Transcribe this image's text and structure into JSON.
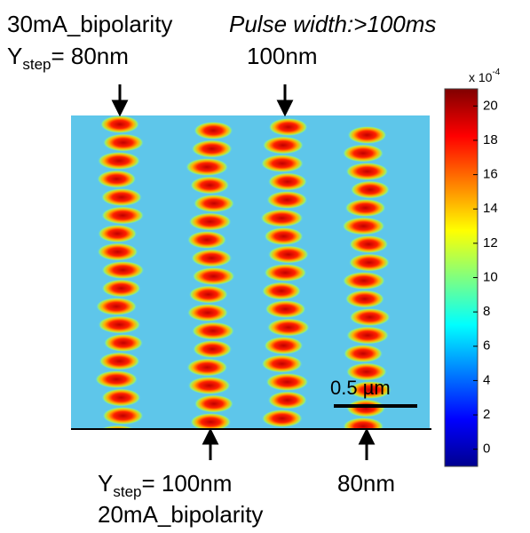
{
  "header": {
    "current_top": "30mA_bipolarity",
    "pulse": "Pulse width:>100ms",
    "ystep_top": {
      "symbol": "Y",
      "sub": "step",
      "value": "= 80nm"
    },
    "right_top": "100nm"
  },
  "footer": {
    "ystep_bottom": {
      "symbol": "Y",
      "sub": "step",
      "value": "= 100nm"
    },
    "right_bottom": "80nm",
    "current_bottom": "20mA_bipolarity"
  },
  "scale_bar": "0.5 µm",
  "colorbar": {
    "multiplier": "x 10",
    "exponent": "-4",
    "lim": [
      -1,
      21
    ],
    "ticks": [
      0,
      2,
      4,
      6,
      8,
      10,
      12,
      14,
      16,
      18,
      20
    ]
  }
}
